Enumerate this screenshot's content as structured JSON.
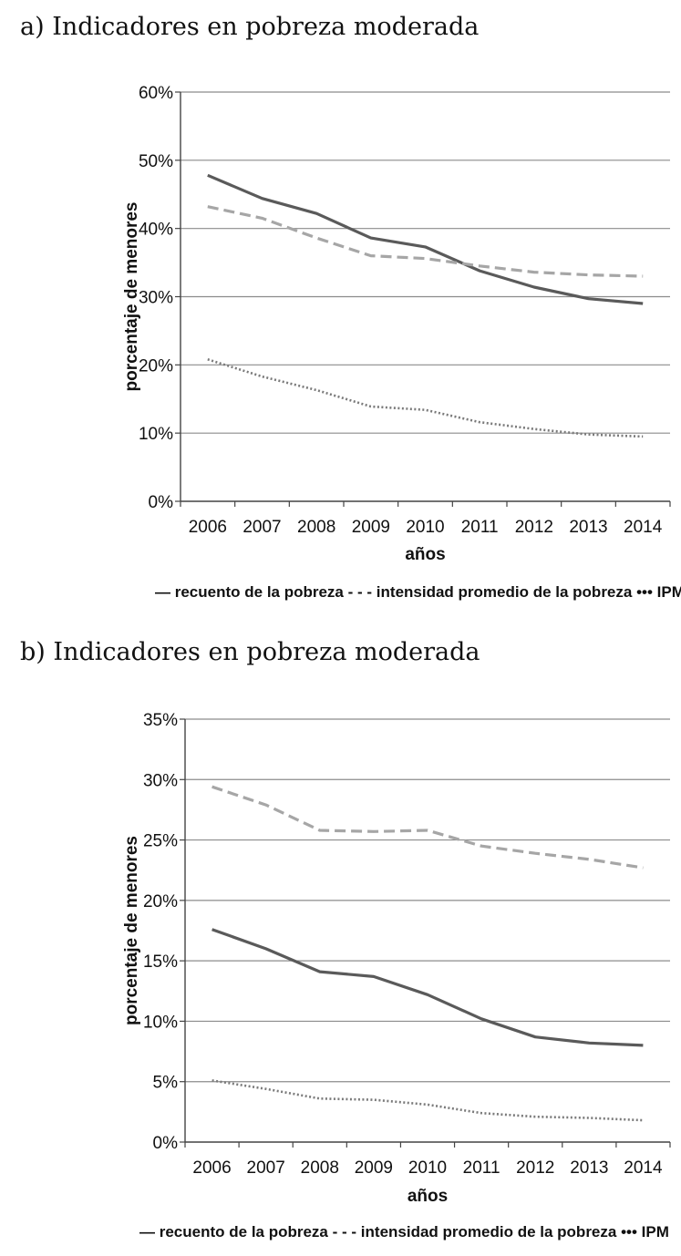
{
  "panels": {
    "a": {
      "title": "a) Indicadores en pobreza moderada"
    },
    "b": {
      "title": "b) Indicadores en pobreza moderada"
    }
  },
  "chart_data": [
    {
      "type": "line",
      "title": "a) Indicadores en pobreza moderada",
      "xlabel": "años",
      "ylabel": "porcentaje de menores",
      "categories": [
        "2006",
        "2007",
        "2008",
        "2009",
        "2010",
        "2011",
        "2012",
        "2013",
        "2014"
      ],
      "ylim": [
        0,
        60
      ],
      "yticks": [
        0,
        10,
        20,
        30,
        40,
        50,
        60
      ],
      "ytick_labels": [
        "0%",
        "10%",
        "20%",
        "30%",
        "40%",
        "50%",
        "60%"
      ],
      "grid": true,
      "legend": "bottom",
      "series": [
        {
          "name": "recuento de la pobreza",
          "style": "solid",
          "color": "#5a5a5a",
          "values": [
            47.8,
            44.4,
            42.2,
            38.6,
            37.3,
            33.8,
            31.4,
            29.7,
            29.0
          ]
        },
        {
          "name": "intensidad promedio de la pobreza",
          "style": "dashed",
          "color": "#a6a6a6",
          "values": [
            43.2,
            41.5,
            38.6,
            36.0,
            35.6,
            34.5,
            33.6,
            33.2,
            33.0
          ]
        },
        {
          "name": "IPM",
          "style": "dotted",
          "color": "#7a7a7a",
          "values": [
            20.8,
            18.3,
            16.3,
            13.9,
            13.4,
            11.6,
            10.6,
            9.8,
            9.5
          ]
        }
      ],
      "legend_entries": [
        {
          "marker": "—",
          "label": "recuento de la pobreza"
        },
        {
          "marker": "- - -",
          "label": "intensidad promedio de la pobreza"
        },
        {
          "marker": "•••",
          "label": "IPM"
        }
      ]
    },
    {
      "type": "line",
      "title": "b) Indicadores en pobreza moderada",
      "xlabel": "años",
      "ylabel": "porcentaje de menores",
      "categories": [
        "2006",
        "2007",
        "2008",
        "2009",
        "2010",
        "2011",
        "2012",
        "2013",
        "2014"
      ],
      "ylim": [
        0,
        35
      ],
      "yticks": [
        0,
        5,
        10,
        15,
        20,
        25,
        30,
        35
      ],
      "ytick_labels": [
        "0%",
        "5%",
        "10%",
        "15%",
        "20%",
        "25%",
        "30%",
        "35%"
      ],
      "grid": true,
      "legend": "bottom",
      "series": [
        {
          "name": "recuento de la pobreza",
          "style": "solid",
          "color": "#5a5a5a",
          "values": [
            17.6,
            16.0,
            14.1,
            13.7,
            12.2,
            10.2,
            8.7,
            8.2,
            8.0
          ]
        },
        {
          "name": "intensidad promedio de la pobreza",
          "style": "dashed",
          "color": "#a6a6a6",
          "values": [
            29.4,
            27.9,
            25.8,
            25.7,
            25.8,
            24.5,
            23.9,
            23.4,
            22.7
          ]
        },
        {
          "name": "IPM",
          "style": "dotted",
          "color": "#7a7a7a",
          "values": [
            5.1,
            4.4,
            3.6,
            3.5,
            3.1,
            2.4,
            2.1,
            2.0,
            1.8
          ]
        }
      ],
      "legend_entries": [
        {
          "marker": "—",
          "label": "recuento de la pobreza"
        },
        {
          "marker": "- - -",
          "label": "intensidad promedio de la pobreza"
        },
        {
          "marker": "•••",
          "label": "IPM"
        }
      ]
    }
  ]
}
